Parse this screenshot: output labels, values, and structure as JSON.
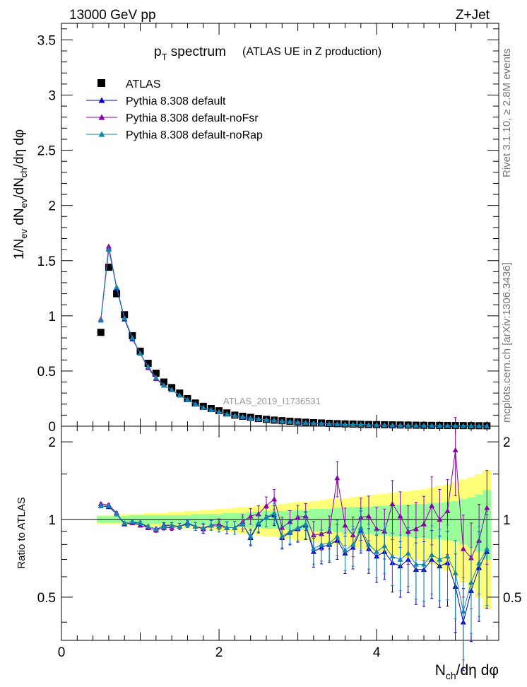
{
  "header": {
    "left": "13000 GeV pp",
    "right": "Z+Jet"
  },
  "side": {
    "top": "Rivet 3.1.10, ≥ 2.8M events",
    "bottom": "mcplots.cern.ch [arXiv:1306.3436]"
  },
  "chart_data": [
    {
      "type": "scatter",
      "title_main": "p",
      "title_sub": "T",
      "title_rest": " spectrum",
      "title_paren": "(ATLAS UE in Z production)",
      "ylabel": "1/N_ev dN_ev/dN_ch/dη dφ",
      "watermark": "ATLAS_2019_I1736531",
      "ylim": [
        0,
        3.65
      ],
      "yticks": [
        "0",
        "0.5",
        "1",
        "1.5",
        "2",
        "2.5",
        "3",
        "3.5"
      ],
      "x": [
        0.5,
        0.6,
        0.7,
        0.8,
        0.9,
        1.0,
        1.1,
        1.2,
        1.3,
        1.4,
        1.5,
        1.6,
        1.7,
        1.8,
        1.9,
        2.0,
        2.1,
        2.2,
        2.3,
        2.4,
        2.5,
        2.6,
        2.7,
        2.8,
        2.9,
        3.0,
        3.1,
        3.2,
        3.3,
        3.4,
        3.5,
        3.6,
        3.7,
        3.8,
        3.9,
        4.0,
        4.1,
        4.2,
        4.3,
        4.4,
        4.5,
        4.6,
        4.7,
        4.8,
        4.9,
        5.0,
        5.1,
        5.2,
        5.3,
        5.4
      ],
      "series": [
        {
          "name": "ATLAS",
          "color": "#000000",
          "marker": "square",
          "values": [
            0.85,
            1.44,
            1.2,
            1.01,
            0.82,
            0.68,
            0.57,
            0.48,
            0.4,
            0.35,
            0.3,
            0.25,
            0.21,
            0.18,
            0.16,
            0.14,
            0.12,
            0.1,
            0.09,
            0.08,
            0.07,
            0.062,
            0.055,
            0.05,
            0.045,
            0.04,
            0.036,
            0.032,
            0.029,
            0.026,
            0.023,
            0.021,
            0.019,
            0.017,
            0.015,
            0.014,
            0.013,
            0.012,
            0.011,
            0.01,
            0.009,
            0.008,
            0.0075,
            0.007,
            0.0065,
            0.006,
            0.0055,
            0.005,
            0.0045,
            0.004
          ]
        },
        {
          "name": "Pythia 8.308 default",
          "color": "#0000cc",
          "marker": "triangle",
          "values": [
            0.96,
            1.61,
            1.25,
            0.97,
            0.79,
            0.66,
            0.53,
            0.43,
            0.37,
            0.33,
            0.28,
            0.24,
            0.2,
            0.17,
            0.15,
            0.13,
            0.11,
            0.095,
            0.085,
            0.072,
            0.064,
            0.058,
            0.052,
            0.044,
            0.04,
            0.035,
            0.031,
            0.026,
            0.024,
            0.021,
            0.019,
            0.016,
            0.015,
            0.015,
            0.012,
            0.011,
            0.0095,
            0.0085,
            0.0075,
            0.0068,
            0.006,
            0.0055,
            0.005,
            0.0045,
            0.004,
            0.0037,
            0.0032,
            0.0028,
            0.0025,
            0.0022
          ]
        },
        {
          "name": "Pythia 8.308 default-noFsr",
          "color": "#8800aa",
          "marker": "triangle",
          "values": [
            0.97,
            1.63,
            1.26,
            0.98,
            0.8,
            0.66,
            0.53,
            0.43,
            0.37,
            0.33,
            0.28,
            0.24,
            0.2,
            0.17,
            0.15,
            0.13,
            0.11,
            0.096,
            0.087,
            0.074,
            0.066,
            0.061,
            0.056,
            0.046,
            0.042,
            0.037,
            0.033,
            0.029,
            0.026,
            0.023,
            0.022,
            0.018,
            0.016,
            0.016,
            0.014,
            0.012,
            0.011,
            0.01,
            0.009,
            0.008,
            0.007,
            0.0065,
            0.006,
            0.0055,
            0.005,
            0.0045,
            0.004,
            0.0035,
            0.003,
            0.0028
          ]
        },
        {
          "name": "Pythia 8.308 default-noRap",
          "color": "#1188aa",
          "marker": "triangle",
          "values": [
            0.96,
            1.6,
            1.26,
            0.98,
            0.8,
            0.66,
            0.54,
            0.44,
            0.37,
            0.33,
            0.28,
            0.24,
            0.2,
            0.17,
            0.15,
            0.13,
            0.11,
            0.096,
            0.086,
            0.073,
            0.065,
            0.059,
            0.053,
            0.045,
            0.041,
            0.036,
            0.032,
            0.027,
            0.025,
            0.022,
            0.02,
            0.017,
            0.016,
            0.016,
            0.013,
            0.012,
            0.01,
            0.009,
            0.008,
            0.0072,
            0.0064,
            0.0058,
            0.0052,
            0.0047,
            0.0043,
            0.004,
            0.0035,
            0.003,
            0.0027,
            0.0024
          ]
        }
      ]
    },
    {
      "type": "line",
      "ylabel": "Ratio to ATLAS",
      "xlabel": "N_ch/dη dφ",
      "xlim": [
        0,
        5.55
      ],
      "ylim": [
        0.34,
        2.3
      ],
      "xticks": [
        "0",
        "2",
        "4"
      ],
      "yticks": [
        "0.5",
        "1",
        "2"
      ],
      "band_inner_halfwidth": [
        0.03,
        0.03,
        0.03,
        0.03,
        0.04,
        0.04,
        0.04,
        0.04,
        0.04,
        0.04,
        0.04,
        0.04,
        0.05,
        0.05,
        0.05,
        0.05,
        0.06,
        0.06,
        0.06,
        0.07,
        0.07,
        0.08,
        0.08,
        0.08,
        0.09,
        0.09,
        0.09,
        0.1,
        0.1,
        0.1,
        0.11,
        0.11,
        0.12,
        0.12,
        0.12,
        0.13,
        0.13,
        0.14,
        0.14,
        0.14,
        0.15,
        0.15,
        0.16,
        0.16,
        0.17,
        0.18,
        0.2,
        0.22,
        0.25,
        0.3
      ],
      "band_outer_halfwidth": [
        0.04,
        0.04,
        0.04,
        0.05,
        0.05,
        0.05,
        0.06,
        0.06,
        0.06,
        0.07,
        0.07,
        0.08,
        0.08,
        0.09,
        0.09,
        0.1,
        0.1,
        0.11,
        0.12,
        0.12,
        0.13,
        0.14,
        0.14,
        0.15,
        0.16,
        0.17,
        0.17,
        0.18,
        0.19,
        0.2,
        0.2,
        0.21,
        0.22,
        0.23,
        0.24,
        0.25,
        0.26,
        0.27,
        0.28,
        0.29,
        0.3,
        0.31,
        0.33,
        0.35,
        0.37,
        0.4,
        0.43,
        0.46,
        0.5,
        0.55
      ],
      "series": [
        {
          "name": "Pythia 8.308 default",
          "color": "#0000cc",
          "values": [
            1.13,
            1.12,
            1.05,
            0.96,
            0.97,
            0.97,
            0.93,
            0.91,
            0.95,
            0.95,
            0.94,
            0.97,
            0.94,
            0.92,
            0.95,
            0.94,
            0.93,
            0.93,
            0.96,
            0.85,
            0.96,
            1.02,
            1.04,
            0.85,
            0.89,
            0.92,
            0.95,
            0.75,
            0.78,
            0.8,
            0.83,
            0.74,
            0.78,
            0.91,
            0.77,
            0.72,
            0.75,
            0.68,
            0.66,
            0.7,
            0.64,
            0.64,
            0.7,
            0.66,
            0.68,
            0.55,
            0.4,
            0.53,
            0.65,
            0.75
          ]
        },
        {
          "name": "Pythia 8.308 default-noFsr",
          "color": "#8800aa",
          "values": [
            1.15,
            1.14,
            1.06,
            0.96,
            0.97,
            0.95,
            0.93,
            0.91,
            0.93,
            0.93,
            0.94,
            0.96,
            0.94,
            0.92,
            0.95,
            0.96,
            0.93,
            0.93,
            0.98,
            1.03,
            1.05,
            1.13,
            1.2,
            0.93,
            0.98,
            1.02,
            1.03,
            0.87,
            0.88,
            0.9,
            1.45,
            0.95,
            0.87,
            1.02,
            1.03,
            0.92,
            0.9,
            1.15,
            1.03,
            0.9,
            0.92,
            0.96,
            1.13,
            1.0,
            1.08,
            1.86,
            0.77,
            0.71,
            0.83,
            1.11
          ]
        },
        {
          "name": "Pythia 8.308 default-noRap",
          "color": "#1188aa",
          "values": [
            1.13,
            1.13,
            1.05,
            0.97,
            0.98,
            0.97,
            0.94,
            0.92,
            0.94,
            0.95,
            0.94,
            0.96,
            0.94,
            0.93,
            0.95,
            0.94,
            0.93,
            0.93,
            0.96,
            0.86,
            0.97,
            1.02,
            1.06,
            0.86,
            0.9,
            0.93,
            0.96,
            0.77,
            0.8,
            0.81,
            0.86,
            0.76,
            0.8,
            0.93,
            0.8,
            0.75,
            0.79,
            0.72,
            0.7,
            0.74,
            0.67,
            0.67,
            0.73,
            0.7,
            0.72,
            0.62,
            0.44,
            0.57,
            0.68,
            0.77
          ]
        }
      ]
    }
  ]
}
